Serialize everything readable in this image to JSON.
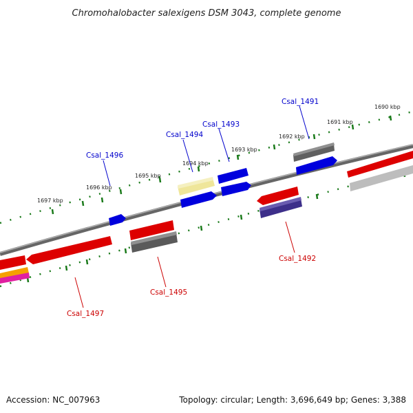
{
  "title": "Chromohalobacter salexigens DSM 3043, complete genome",
  "footer": {
    "accession": "Accession: NC_007963",
    "summary": "Topology: circular; Length: 3,696,649 bp; Genes: 3,388"
  },
  "colors": {
    "forward_label": "#0000cc",
    "reverse_label": "#cc0000",
    "tick": "#1a7a1a",
    "backbone": "#888888"
  },
  "ruler_labels": [
    "1690 kbp",
    "1691 kbp",
    "1692 kbp",
    "1693 kbp",
    "1694 kbp",
    "1695 kbp",
    "1696 kbp",
    "1697 kbp"
  ],
  "gene_labels": {
    "forward": [
      "Csal_1491",
      "Csal_1493",
      "Csal_1494",
      "Csal_1496"
    ],
    "reverse": [
      "Csal_1492",
      "Csal_1495",
      "Csal_1497"
    ]
  }
}
